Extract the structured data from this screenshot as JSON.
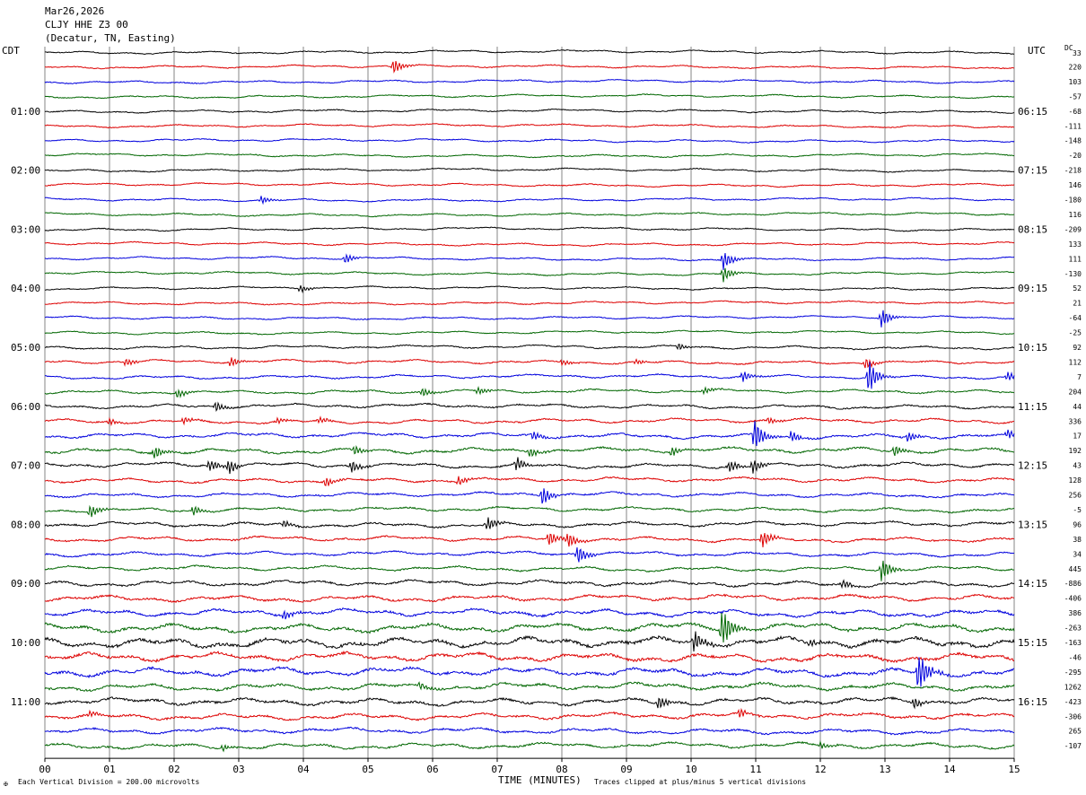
{
  "header": {
    "date": "Mar26,2026",
    "station": "CLJY HHE Z3 00",
    "location": "(Decatur, TN, Easting)"
  },
  "left_label": "CDT",
  "right_label": "UTC",
  "dc_label": "DC",
  "dc_first": "33",
  "footer": {
    "scale": "Each Vertical Division =  200.00 microvolts",
    "xlabel": "TIME (MINUTES)",
    "clip": "Traces clipped at plus/minus 5 vertical divisions",
    "logo": "✠"
  },
  "colors": {
    "black": "#000000",
    "red": "#dd0000",
    "blue": "#0000dd",
    "green": "#006600",
    "grid": "#666666"
  },
  "chart_data": {
    "type": "line",
    "title": "",
    "xlabel": "TIME (MINUTES)",
    "xlim": [
      0,
      15
    ],
    "x_ticks": [
      "00",
      "01",
      "02",
      "03",
      "04",
      "05",
      "06",
      "07",
      "08",
      "09",
      "10",
      "11",
      "12",
      "13",
      "14",
      "15"
    ],
    "trace_minutes": 15,
    "trace_count": 48,
    "trace_color_cycle": [
      "black",
      "red",
      "blue",
      "green"
    ],
    "left_time_labels": [
      {
        "trace": 4,
        "label": "01:00"
      },
      {
        "trace": 8,
        "label": "02:00"
      },
      {
        "trace": 12,
        "label": "03:00"
      },
      {
        "trace": 16,
        "label": "04:00"
      },
      {
        "trace": 20,
        "label": "05:00"
      },
      {
        "trace": 24,
        "label": "06:00"
      },
      {
        "trace": 28,
        "label": "07:00"
      },
      {
        "trace": 32,
        "label": "08:00"
      },
      {
        "trace": 36,
        "label": "09:00"
      },
      {
        "trace": 40,
        "label": "10:00"
      },
      {
        "trace": 44,
        "label": "11:00"
      }
    ],
    "right_time_labels": [
      {
        "trace": 4,
        "label": "06:15"
      },
      {
        "trace": 8,
        "label": "07:15"
      },
      {
        "trace": 12,
        "label": "08:15"
      },
      {
        "trace": 16,
        "label": "09:15"
      },
      {
        "trace": 20,
        "label": "10:15"
      },
      {
        "trace": 24,
        "label": "11:15"
      },
      {
        "trace": 28,
        "label": "12:15"
      },
      {
        "trace": 32,
        "label": "13:15"
      },
      {
        "trace": 36,
        "label": "14:15"
      },
      {
        "trace": 40,
        "label": "15:15"
      },
      {
        "trace": 44,
        "label": "16:15"
      }
    ],
    "dc_offsets": [
      "220",
      "103",
      "-57",
      "-68",
      "-111",
      "-148",
      "-20",
      "-218",
      "146",
      "-180",
      "116",
      "-209",
      "133",
      "111",
      "-130",
      "52",
      "21",
      "-64",
      "-25",
      "92",
      "112",
      "7",
      "204",
      "44",
      "336",
      "17",
      "192",
      "43",
      "128",
      "256",
      "-5",
      "96",
      "38",
      "34",
      "445",
      "-886",
      "-406",
      "386",
      "-263",
      "-163",
      "-46",
      "-295",
      "1262",
      "-423",
      "-306",
      "265",
      "-107"
    ],
    "noise_level": [
      1,
      1,
      1,
      1,
      1,
      1,
      1,
      1,
      1,
      1,
      1,
      1,
      1,
      1,
      1,
      1,
      1,
      1,
      1,
      1,
      1.2,
      1.3,
      1.3,
      1.4,
      1.5,
      1.6,
      1.8,
      2,
      1.8,
      1.7,
      1.6,
      1.6,
      1.8,
      1.8,
      1.6,
      1.7,
      2,
      2.2,
      2.5,
      3,
      3.5,
      3,
      3,
      2.5,
      2.5,
      2.2,
      2,
      2
    ],
    "events": [
      {
        "trace": 1,
        "minute": 5.4,
        "amp": 1.5
      },
      {
        "trace": 10,
        "minute": 3.35,
        "amp": 0.8
      },
      {
        "trace": 14,
        "minute": 4.65,
        "amp": 1.0
      },
      {
        "trace": 14,
        "minute": 10.5,
        "amp": 2.0
      },
      {
        "trace": 15,
        "minute": 10.5,
        "amp": 1.6
      },
      {
        "trace": 16,
        "minute": 3.95,
        "amp": 0.8
      },
      {
        "trace": 18,
        "minute": 12.95,
        "amp": 2.0
      },
      {
        "trace": 20,
        "minute": 9.8,
        "amp": 0.7
      },
      {
        "trace": 21,
        "minute": 1.25,
        "amp": 0.8
      },
      {
        "trace": 21,
        "minute": 2.88,
        "amp": 1.0
      },
      {
        "trace": 21,
        "minute": 8.0,
        "amp": 0.6
      },
      {
        "trace": 21,
        "minute": 9.15,
        "amp": 0.6
      },
      {
        "trace": 21,
        "minute": 12.7,
        "amp": 1.2
      },
      {
        "trace": 22,
        "minute": 12.75,
        "amp": 3.5
      },
      {
        "trace": 22,
        "minute": 10.8,
        "amp": 1.2
      },
      {
        "trace": 22,
        "minute": 14.9,
        "amp": 1.0
      },
      {
        "trace": 23,
        "minute": 2.05,
        "amp": 1.0
      },
      {
        "trace": 23,
        "minute": 5.85,
        "amp": 0.9
      },
      {
        "trace": 23,
        "minute": 6.7,
        "amp": 0.7
      },
      {
        "trace": 23,
        "minute": 10.2,
        "amp": 0.7
      },
      {
        "trace": 24,
        "minute": 2.65,
        "amp": 1.0
      },
      {
        "trace": 25,
        "minute": 1.0,
        "amp": 0.6
      },
      {
        "trace": 25,
        "minute": 2.15,
        "amp": 0.7
      },
      {
        "trace": 25,
        "minute": 3.6,
        "amp": 0.7
      },
      {
        "trace": 25,
        "minute": 4.25,
        "amp": 0.7
      },
      {
        "trace": 25,
        "minute": 11.2,
        "amp": 0.7
      },
      {
        "trace": 26,
        "minute": 10.98,
        "amp": 3.5
      },
      {
        "trace": 26,
        "minute": 11.55,
        "amp": 1.2
      },
      {
        "trace": 26,
        "minute": 13.35,
        "amp": 1.2
      },
      {
        "trace": 26,
        "minute": 14.9,
        "amp": 1.0
      },
      {
        "trace": 26,
        "minute": 7.55,
        "amp": 1.0
      },
      {
        "trace": 27,
        "minute": 1.7,
        "amp": 1.2
      },
      {
        "trace": 27,
        "minute": 4.8,
        "amp": 1.0
      },
      {
        "trace": 27,
        "minute": 7.5,
        "amp": 1.0
      },
      {
        "trace": 27,
        "minute": 9.7,
        "amp": 1.0
      },
      {
        "trace": 27,
        "minute": 13.15,
        "amp": 1.2
      },
      {
        "trace": 28,
        "minute": 2.55,
        "amp": 1.2
      },
      {
        "trace": 28,
        "minute": 2.85,
        "amp": 1.5
      },
      {
        "trace": 28,
        "minute": 4.75,
        "amp": 1.2
      },
      {
        "trace": 28,
        "minute": 7.3,
        "amp": 1.5
      },
      {
        "trace": 28,
        "minute": 10.6,
        "amp": 1.2
      },
      {
        "trace": 28,
        "minute": 10.95,
        "amp": 1.5
      },
      {
        "trace": 29,
        "minute": 4.35,
        "amp": 1.2
      },
      {
        "trace": 29,
        "minute": 6.4,
        "amp": 1.0
      },
      {
        "trace": 30,
        "minute": 7.7,
        "amp": 2.0
      },
      {
        "trace": 31,
        "minute": 0.7,
        "amp": 1.5
      },
      {
        "trace": 31,
        "minute": 2.3,
        "amp": 1.0
      },
      {
        "trace": 32,
        "minute": 6.85,
        "amp": 1.4
      },
      {
        "trace": 32,
        "minute": 3.7,
        "amp": 0.8
      },
      {
        "trace": 33,
        "minute": 7.8,
        "amp": 1.5
      },
      {
        "trace": 33,
        "minute": 8.1,
        "amp": 1.5
      },
      {
        "trace": 33,
        "minute": 11.1,
        "amp": 1.8
      },
      {
        "trace": 34,
        "minute": 8.25,
        "amp": 2.0
      },
      {
        "trace": 35,
        "minute": 12.95,
        "amp": 2.5
      },
      {
        "trace": 36,
        "minute": 12.35,
        "amp": 1.0
      },
      {
        "trace": 38,
        "minute": 3.7,
        "amp": 1.0
      },
      {
        "trace": 39,
        "minute": 10.48,
        "amp": 5.0
      },
      {
        "trace": 40,
        "minute": 10.05,
        "amp": 2.2
      },
      {
        "trace": 40,
        "minute": 11.85,
        "amp": 1.0
      },
      {
        "trace": 42,
        "minute": 13.52,
        "amp": 5.0
      },
      {
        "trace": 43,
        "minute": 5.8,
        "amp": 0.8
      },
      {
        "trace": 44,
        "minute": 9.5,
        "amp": 1.5
      },
      {
        "trace": 44,
        "minute": 13.45,
        "amp": 1.2
      },
      {
        "trace": 45,
        "minute": 0.7,
        "amp": 0.8
      },
      {
        "trace": 45,
        "minute": 10.75,
        "amp": 1.0
      },
      {
        "trace": 47,
        "minute": 2.75,
        "amp": 0.7
      },
      {
        "trace": 47,
        "minute": 12.0,
        "amp": 0.7
      }
    ]
  }
}
